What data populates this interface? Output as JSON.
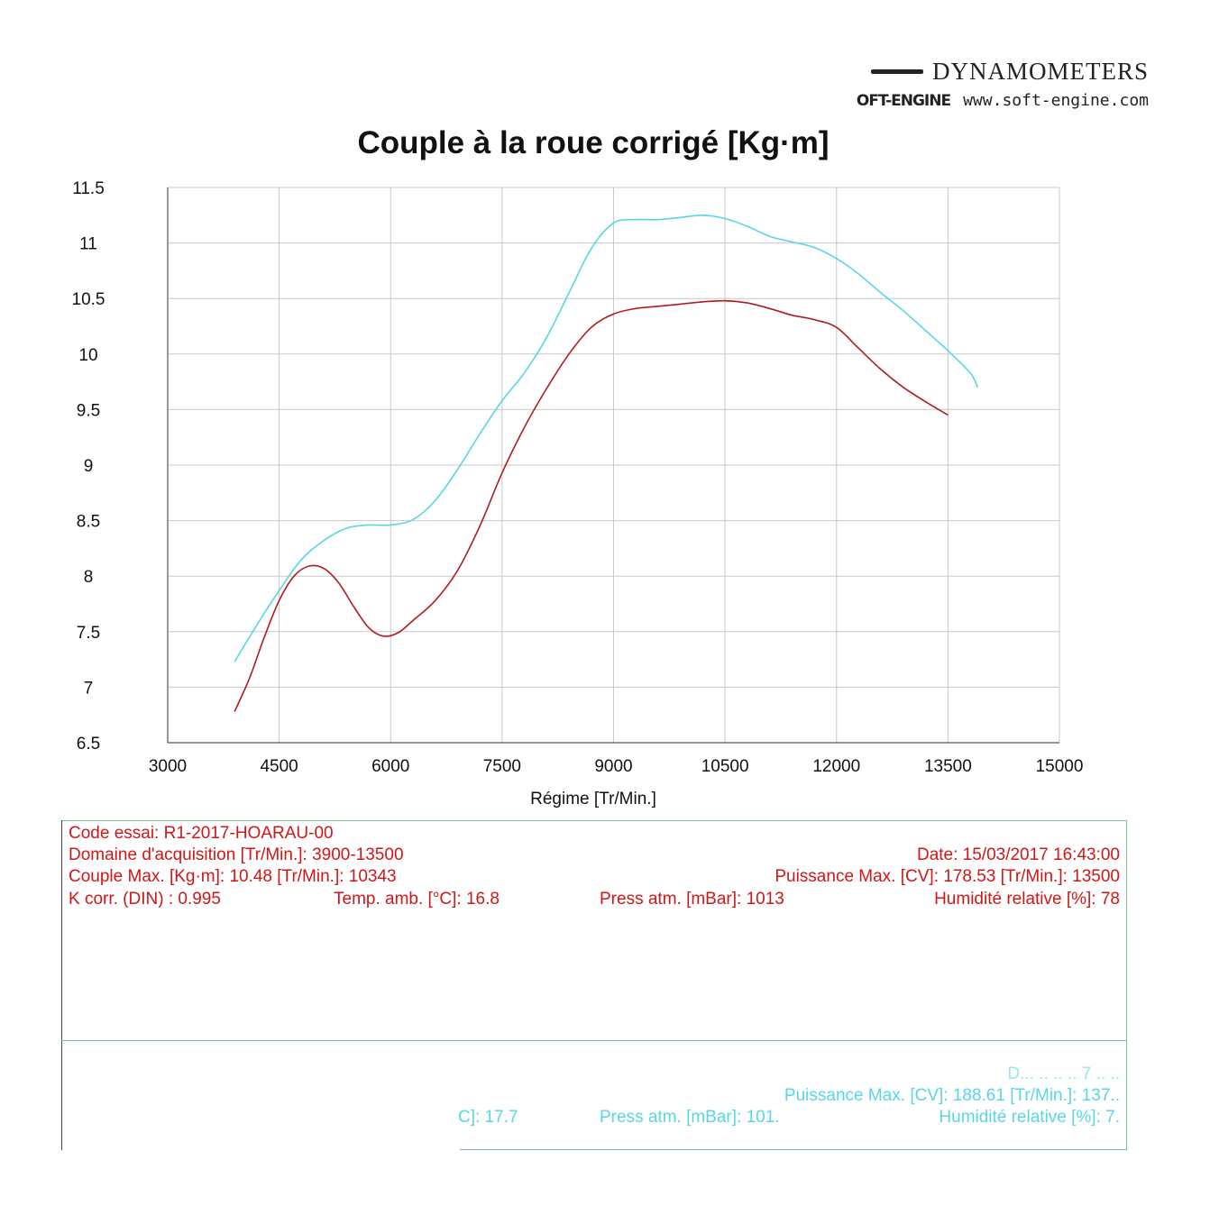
{
  "brand": {
    "name": "DYNAMOMETERS",
    "logo": "OFT-ENGINE",
    "url": "www.soft-engine.com"
  },
  "chart_data": {
    "type": "line",
    "title": "Couple à la roue corrigé [Kg·m]",
    "xlabel": "Régime [Tr/Min.]",
    "ylabel": "",
    "xlim": [
      3000,
      15000
    ],
    "ylim": [
      6.5,
      11.5
    ],
    "xticks": [
      3000,
      4500,
      6000,
      7500,
      9000,
      10500,
      12000,
      13500,
      15000
    ],
    "yticks": [
      6.5,
      7,
      7.5,
      8,
      8.5,
      9,
      9.5,
      10,
      10.5,
      11,
      11.5
    ],
    "grid": true,
    "series": [
      {
        "color": "#58d6e6",
        "x": [
          3900,
          4200,
          4500,
          4800,
          5100,
          5400,
          5700,
          6000,
          6300,
          6600,
          6900,
          7200,
          7500,
          7800,
          8100,
          8400,
          8700,
          9000,
          9300,
          9600,
          9900,
          10200,
          10500,
          10800,
          11100,
          11400,
          11700,
          12000,
          12300,
          12600,
          12900,
          13200,
          13500,
          13800,
          13900
        ],
        "y": [
          7.23,
          7.56,
          7.87,
          8.15,
          8.32,
          8.43,
          8.46,
          8.46,
          8.51,
          8.68,
          8.96,
          9.28,
          9.58,
          9.83,
          10.15,
          10.55,
          10.95,
          11.18,
          11.21,
          11.21,
          11.23,
          11.25,
          11.22,
          11.15,
          11.06,
          11.01,
          10.96,
          10.86,
          10.72,
          10.55,
          10.39,
          10.21,
          10.03,
          9.83,
          9.7
        ]
      },
      {
        "color": "#b01c1c",
        "x": [
          3900,
          4100,
          4300,
          4500,
          4700,
          4900,
          5100,
          5300,
          5500,
          5700,
          5900,
          6100,
          6300,
          6600,
          6900,
          7200,
          7500,
          7800,
          8100,
          8400,
          8700,
          9000,
          9300,
          9600,
          9900,
          10200,
          10500,
          10800,
          11100,
          11400,
          11700,
          12000,
          12300,
          12600,
          12900,
          13200,
          13500
        ],
        "y": [
          6.78,
          7.08,
          7.45,
          7.78,
          8.0,
          8.09,
          8.07,
          7.94,
          7.73,
          7.54,
          7.46,
          7.49,
          7.6,
          7.78,
          8.05,
          8.45,
          8.93,
          9.34,
          9.69,
          10.0,
          10.24,
          10.36,
          10.41,
          10.43,
          10.45,
          10.47,
          10.48,
          10.46,
          10.41,
          10.35,
          10.31,
          10.24,
          10.05,
          9.86,
          9.7,
          9.57,
          9.45
        ]
      }
    ]
  },
  "test_red": {
    "code": "Code essai: R1-2017-HOARAU-00",
    "domain": "Domaine d'acquisition [Tr/Min.]: 3900-13500",
    "date": "Date: 15/03/2017   16:43:00",
    "couple_max": "Couple Max. [Kg·m]: 10.48   [Tr/Min.]: 10343",
    "puissance_max": "Puissance Max. [CV]: 178.53   [Tr/Min.]: 13500",
    "k_corr": "K corr. (DIN) : 0.995",
    "temp": "Temp. amb. [°C]: 16.8",
    "press": "Press atm. [mBar]: 1013",
    "humid": "Humidité relative [%]: 78"
  },
  "test_cyan": {
    "date_partial": "D...  ..  ..  .. 7   ..  ..",
    "puissance_max": "Puissance Max. [CV]: 188.61   [Tr/Min.]: 137..",
    "temp_partial": "C]: 17.7",
    "press": "Press atm. [mBar]: 101.",
    "humid": "Humidité relative [%]: 7."
  }
}
